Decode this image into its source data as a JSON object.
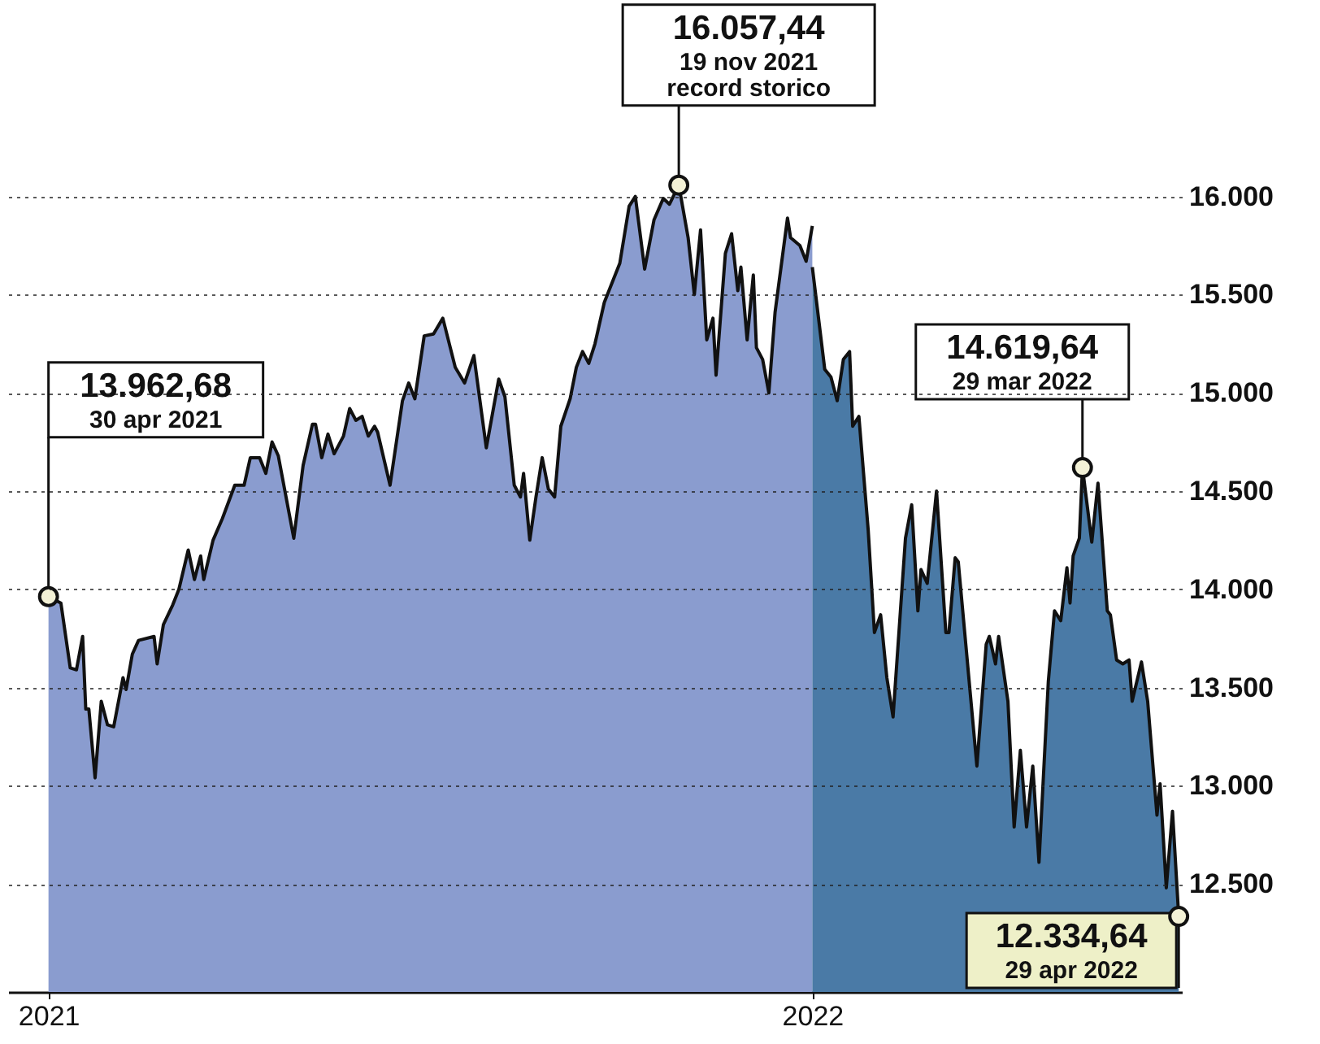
{
  "chart_data": {
    "type": "area",
    "xlim": [
      "2021-04-17",
      "2022-04-30"
    ],
    "xticks": [
      {
        "value": "2021-04-30",
        "label": "2021"
      },
      {
        "value": "2022-01-01",
        "label": "2022"
      }
    ],
    "ylim": [
      11950,
      17000
    ],
    "yticks": [
      {
        "value": 12500,
        "label": "12.500"
      },
      {
        "value": 13000,
        "label": "13.000"
      },
      {
        "value": 13500,
        "label": "13.500"
      },
      {
        "value": 14000,
        "label": "14.000"
      },
      {
        "value": 14500,
        "label": "14.500"
      },
      {
        "value": 15000,
        "label": "15.000"
      },
      {
        "value": 15500,
        "label": "15.500"
      },
      {
        "value": 16000,
        "label": "16.000"
      }
    ],
    "grid": "y",
    "series": [
      {
        "color": "#8a9ccf",
        "x": [
          "2021-04-30",
          "2021-05-04",
          "2021-05-07",
          "2021-05-09",
          "2021-05-11",
          "2021-05-12",
          "2021-05-13",
          "2021-05-15",
          "2021-05-17",
          "2021-05-19",
          "2021-05-21",
          "2021-05-24",
          "2021-05-25",
          "2021-05-27",
          "2021-05-29",
          "2021-06-03",
          "2021-06-04",
          "2021-06-06",
          "2021-06-09",
          "2021-06-11",
          "2021-06-14",
          "2021-06-16",
          "2021-06-18",
          "2021-06-19",
          "2021-06-22",
          "2021-06-25",
          "2021-06-29",
          "2021-07-02",
          "2021-07-04",
          "2021-07-07",
          "2021-07-09",
          "2021-07-11",
          "2021-07-13",
          "2021-07-18",
          "2021-07-21",
          "2021-07-24",
          "2021-07-25",
          "2021-07-27",
          "2021-07-29",
          "2021-07-31",
          "2021-08-03",
          "2021-08-05",
          "2021-08-07",
          "2021-08-09",
          "2021-08-11",
          "2021-08-13",
          "2021-08-14",
          "2021-08-18",
          "2021-08-22",
          "2021-08-24",
          "2021-08-26",
          "2021-08-29",
          "2021-09-01",
          "2021-09-04",
          "2021-09-08",
          "2021-09-11",
          "2021-09-14",
          "2021-09-18",
          "2021-09-22",
          "2021-09-24",
          "2021-09-27",
          "2021-09-29",
          "2021-09-30",
          "2021-10-02",
          "2021-10-04",
          "2021-10-06",
          "2021-10-08",
          "2021-10-10",
          "2021-10-12",
          "2021-10-15",
          "2021-10-17",
          "2021-10-19",
          "2021-10-21",
          "2021-10-23",
          "2021-10-26",
          "2021-10-29",
          "2021-10-31",
          "2021-11-03",
          "2021-11-05",
          "2021-11-08",
          "2021-11-11",
          "2021-11-14",
          "2021-11-16",
          "2021-11-19",
          "2021-11-22",
          "2021-11-24",
          "2021-11-26",
          "2021-11-28",
          "2021-11-30",
          "2021-12-01",
          "2021-12-04",
          "2021-12-06",
          "2021-12-08",
          "2021-12-09",
          "2021-12-11",
          "2021-12-13",
          "2021-12-14",
          "2021-12-16",
          "2021-12-18",
          "2021-12-20",
          "2021-12-24",
          "2021-12-25",
          "2021-12-28",
          "2021-12-30",
          "2022-01-01"
        ],
        "values": [
          13962.68,
          13930,
          13600,
          13590,
          13760,
          13390,
          13390,
          13040,
          13430,
          13310,
          13300,
          13550,
          13490,
          13670,
          13740,
          13760,
          13620,
          13820,
          13920,
          14000,
          14200,
          14050,
          14170,
          14050,
          14250,
          14360,
          14530,
          14530,
          14670,
          14670,
          14590,
          14750,
          14680,
          14260,
          14630,
          14840,
          14840,
          14670,
          14790,
          14690,
          14780,
          14920,
          14860,
          14880,
          14780,
          14830,
          14800,
          14530,
          14960,
          15050,
          14970,
          15290,
          15300,
          15380,
          15130,
          15050,
          15190,
          14720,
          15070,
          14980,
          14530,
          14470,
          14590,
          14250,
          14470,
          14670,
          14510,
          14470,
          14830,
          14970,
          15130,
          15210,
          15150,
          15250,
          15460,
          15580,
          15660,
          15950,
          16000,
          15630,
          15880,
          15990,
          15960,
          16057.44,
          15790,
          15500,
          15830,
          15270,
          15380,
          15090,
          15710,
          15810,
          15520,
          15640,
          15270,
          15600,
          15230,
          15170,
          15000,
          15410,
          15890,
          15790,
          15750,
          15670,
          15850
        ]
      },
      {
        "color": "#4a7aa6",
        "x": [
          "2022-01-01",
          "2022-01-05",
          "2022-01-07",
          "2022-01-09",
          "2022-01-11",
          "2022-01-13",
          "2022-01-14",
          "2022-01-16",
          "2022-01-19",
          "2022-01-21",
          "2022-01-23",
          "2022-01-25",
          "2022-01-27",
          "2022-01-31",
          "2022-02-02",
          "2022-02-04",
          "2022-02-05",
          "2022-02-07",
          "2022-02-10",
          "2022-02-13",
          "2022-02-14",
          "2022-02-16",
          "2022-02-17",
          "2022-02-23",
          "2022-02-26",
          "2022-02-27",
          "2022-03-01",
          "2022-03-02",
          "2022-03-05",
          "2022-03-07",
          "2022-03-09",
          "2022-03-11",
          "2022-03-13",
          "2022-03-15",
          "2022-03-18",
          "2022-03-20",
          "2022-03-22",
          "2022-03-24",
          "2022-03-25",
          "2022-03-26",
          "2022-03-28",
          "2022-03-29",
          "2022-04-01",
          "2022-04-03",
          "2022-04-06",
          "2022-04-07",
          "2022-04-09",
          "2022-04-11",
          "2022-04-13",
          "2022-04-14",
          "2022-04-17",
          "2022-04-19",
          "2022-04-22",
          "2022-04-23",
          "2022-04-25",
          "2022-04-27",
          "2022-04-29"
        ],
        "values": [
          15640,
          15120,
          15080,
          14960,
          15170,
          15210,
          14830,
          14880,
          14300,
          13780,
          13870,
          13550,
          13350,
          14260,
          14430,
          13890,
          14100,
          14030,
          14500,
          13780,
          13780,
          14160,
          14140,
          13100,
          13720,
          13760,
          13620,
          13760,
          13430,
          12790,
          13180,
          12790,
          13100,
          12610,
          13530,
          13890,
          13840,
          14110,
          13930,
          14170,
          14260,
          14619.64,
          14240,
          14540,
          13890,
          13870,
          13640,
          13620,
          13640,
          13430,
          13630,
          13430,
          12850,
          13010,
          12480,
          12870,
          12334.64
        ]
      }
    ],
    "annotations": [
      {
        "text": "13.962,68\n30 apr 2021",
        "x": "2021-04-30",
        "y": 13962.68
      },
      {
        "text": "16.057,44\n19 nov 2021\nrecord storico",
        "x": "2021-11-19",
        "y": 16057.44
      },
      {
        "text": "14.619,64\n29 mar 2022",
        "x": "2022-03-29",
        "y": 14619.64
      },
      {
        "text": "12.334,64\n29 apr 2022",
        "x": "2022-04-29",
        "y": 12334.64
      }
    ]
  }
}
